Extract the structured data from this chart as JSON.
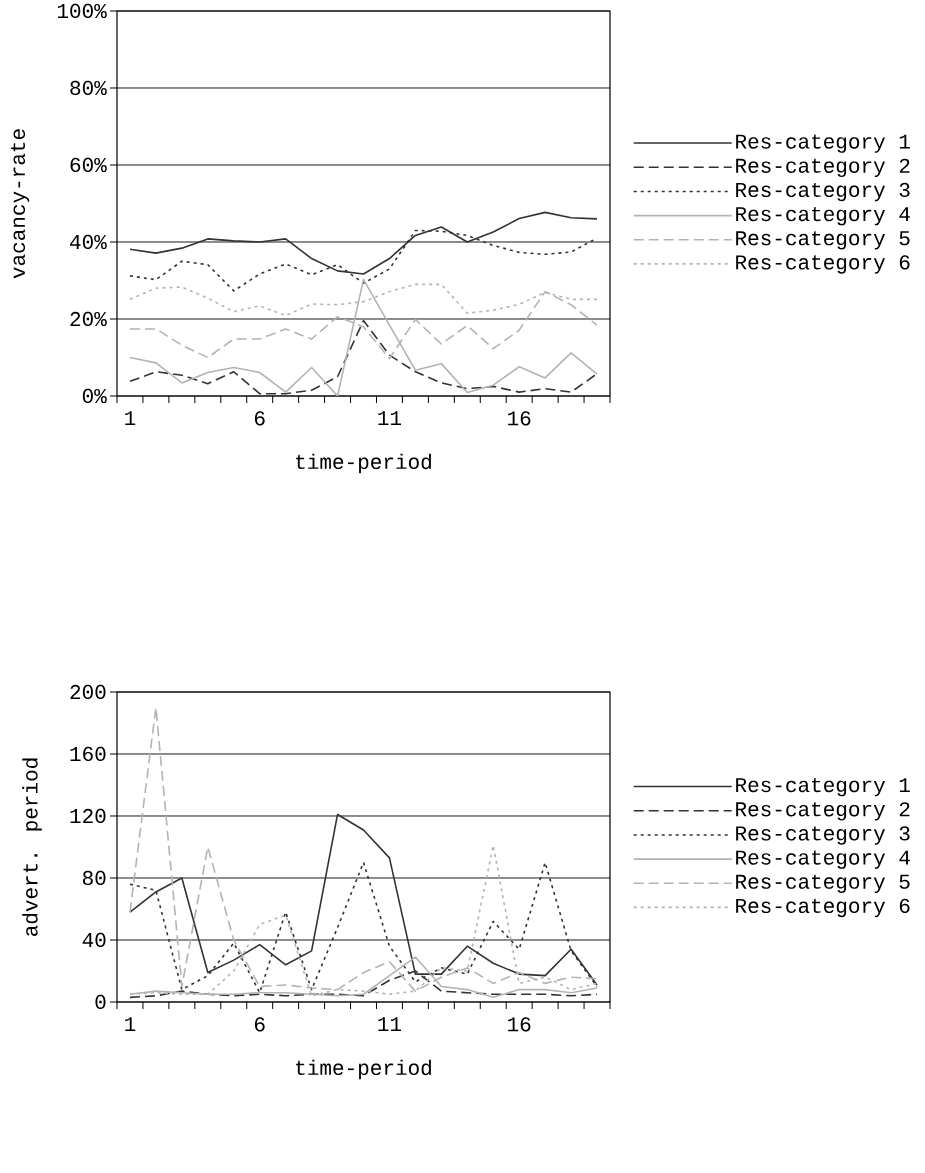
{
  "chart_data": [
    {
      "type": "line",
      "xlabel": "time-period",
      "ylabel": "vacancy-rate",
      "x": [
        1,
        2,
        3,
        4,
        5,
        6,
        7,
        8,
        9,
        10,
        11,
        12,
        13,
        14,
        15,
        16,
        17,
        18,
        19
      ],
      "xlim": [
        0.5,
        19.5
      ],
      "ylim": [
        0,
        100
      ],
      "xticks": [
        {
          "value": 0.5,
          "label": null
        },
        1,
        {
          "value": 1.5,
          "label": null
        },
        {
          "value": 2.5,
          "label": null
        },
        {
          "value": 3.5,
          "label": null
        },
        {
          "value": 4.5,
          "label": null
        },
        {
          "value": 5.5,
          "label": null
        },
        6,
        {
          "value": 6.5,
          "label": null
        },
        {
          "value": 7.5,
          "label": null
        },
        {
          "value": 8.5,
          "label": null
        },
        {
          "value": 9.5,
          "label": null
        },
        {
          "value": 10.5,
          "label": null
        },
        11,
        {
          "value": 11.5,
          "label": null
        },
        {
          "value": 12.5,
          "label": null
        },
        {
          "value": 13.5,
          "label": null
        },
        {
          "value": 14.5,
          "label": null
        },
        {
          "value": 15.5,
          "label": null
        },
        16,
        {
          "value": 16.5,
          "label": null
        },
        {
          "value": 17.5,
          "label": null
        },
        {
          "value": 18.5,
          "label": null
        },
        {
          "value": 19.5,
          "label": null
        }
      ],
      "yticks": [
        {
          "value": 0,
          "label": "0%"
        },
        {
          "value": 20,
          "label": "20%"
        },
        {
          "value": 40,
          "label": "40%"
        },
        {
          "value": 60,
          "label": "60%"
        },
        {
          "value": 80,
          "label": "80%"
        },
        {
          "value": 100,
          "label": "100%"
        }
      ],
      "grid": "y",
      "legend": "right",
      "marker": "none",
      "series": [
        {
          "name": "Res-category 1",
          "color": "#333333",
          "line_style": "solid",
          "values": [
            38.1,
            37.1,
            38.4,
            40.8,
            40.3,
            40,
            40.8,
            35.7,
            32.5,
            31.7,
            35.7,
            41.7,
            43.9,
            40,
            42.6,
            46.1,
            47.7,
            46.3,
            46.0
          ]
        },
        {
          "name": "Res-category 2",
          "color": "#333333",
          "line_style": "dashed",
          "values": [
            3.8,
            6.3,
            5.4,
            3.2,
            6.3,
            0.6,
            0.6,
            1.5,
            5,
            19.6,
            10.6,
            6.3,
            3.4,
            1.9,
            2.5,
            1,
            1.9,
            1,
            5.8
          ]
        },
        {
          "name": "Res-category 3",
          "color": "#333333",
          "line_style": "dotted",
          "values": [
            31.2,
            30.2,
            35,
            34.1,
            27.3,
            31.7,
            34.3,
            31.5,
            34.1,
            29.3,
            33,
            43,
            42.8,
            41.7,
            39.1,
            37.3,
            36.8,
            37.4,
            41
          ]
        },
        {
          "name": "Res-category 4",
          "color": "#b3b3b3",
          "line_style": "solid",
          "values": [
            10,
            8.6,
            3.4,
            6.1,
            7.4,
            6.1,
            1,
            7.4,
            0,
            30.3,
            18.4,
            6.7,
            8.4,
            0.9,
            2.8,
            7.6,
            4.7,
            11.2,
            5.7
          ]
        },
        {
          "name": "Res-category 5",
          "color": "#b3b3b3",
          "line_style": "dashed",
          "values": [
            17.4,
            17.4,
            13.2,
            10,
            14.8,
            14.8,
            17.4,
            14.8,
            20.6,
            18,
            9.7,
            19.9,
            13.5,
            18.3,
            12.3,
            17.1,
            27.1,
            23.7,
            18.4
          ]
        },
        {
          "name": "Res-category 6",
          "color": "#b3b3b3",
          "line_style": "dotted",
          "values": [
            25.1,
            28,
            28.3,
            25.4,
            21.9,
            23.4,
            20.9,
            23.9,
            23.7,
            24.5,
            27.1,
            29,
            29,
            21.5,
            22.3,
            23.8,
            26.9,
            25.1,
            25.1
          ]
        }
      ]
    },
    {
      "type": "line",
      "xlabel": "time-period",
      "ylabel": "advert. period",
      "x": [
        1,
        2,
        3,
        4,
        5,
        6,
        7,
        8,
        9,
        10,
        11,
        12,
        13,
        14,
        15,
        16,
        17,
        18,
        19
      ],
      "xlim": [
        0.5,
        19.5
      ],
      "ylim": [
        0,
        200
      ],
      "xticks": [
        {
          "value": 0.5,
          "label": null
        },
        1,
        {
          "value": 1.5,
          "label": null
        },
        {
          "value": 2.5,
          "label": null
        },
        {
          "value": 3.5,
          "label": null
        },
        {
          "value": 4.5,
          "label": null
        },
        {
          "value": 5.5,
          "label": null
        },
        6,
        {
          "value": 6.5,
          "label": null
        },
        {
          "value": 7.5,
          "label": null
        },
        {
          "value": 8.5,
          "label": null
        },
        {
          "value": 9.5,
          "label": null
        },
        {
          "value": 10.5,
          "label": null
        },
        11,
        {
          "value": 11.5,
          "label": null
        },
        {
          "value": 12.5,
          "label": null
        },
        {
          "value": 13.5,
          "label": null
        },
        {
          "value": 14.5,
          "label": null
        },
        {
          "value": 15.5,
          "label": null
        },
        16,
        {
          "value": 16.5,
          "label": null
        },
        {
          "value": 17.5,
          "label": null
        },
        {
          "value": 18.5,
          "label": null
        },
        {
          "value": 19.5,
          "label": null
        }
      ],
      "yticks": [
        0,
        40,
        80,
        120,
        160,
        200
      ],
      "grid": "y",
      "legend": "right",
      "marker": "none",
      "series": [
        {
          "name": "Res-category 1",
          "color": "#333333",
          "line_style": "solid",
          "values": [
            58,
            71,
            80,
            19,
            27,
            37,
            24,
            33,
            121,
            111,
            93,
            18,
            18,
            36,
            25,
            18,
            17,
            34,
            11
          ]
        },
        {
          "name": "Res-category 2",
          "color": "#333333",
          "line_style": "dashed",
          "values": [
            3,
            4,
            7,
            5,
            4,
            5,
            4,
            5,
            5,
            4,
            14,
            20,
            7,
            6,
            5,
            5,
            5,
            4,
            5
          ]
        },
        {
          "name": "Res-category 3",
          "color": "#333333",
          "line_style": "dotted",
          "values": [
            76,
            72,
            8,
            17,
            38,
            6,
            58,
            8,
            48,
            90,
            36,
            13,
            22,
            18,
            52,
            34,
            90,
            33,
            10
          ]
        },
        {
          "name": "Res-category 4",
          "color": "#b3b3b3",
          "line_style": "solid",
          "values": [
            5,
            7,
            6,
            5,
            5,
            6,
            6,
            5,
            4,
            5,
            17,
            29,
            10,
            8,
            3,
            8,
            8,
            6,
            9
          ]
        },
        {
          "name": "Res-category 5",
          "color": "#b3b3b3",
          "line_style": "dashed",
          "values": [
            58,
            190,
            10,
            100,
            40,
            10,
            11,
            9,
            8,
            19,
            26,
            7,
            16,
            22,
            12,
            19,
            12,
            16,
            15
          ]
        },
        {
          "name": "Res-category 6",
          "color": "#b3b3b3",
          "line_style": "dotted",
          "values": [
            5,
            6,
            5,
            5,
            20,
            50,
            56,
            4,
            8,
            7,
            5,
            7,
            22,
            20,
            101,
            12,
            16,
            8,
            12
          ]
        }
      ]
    }
  ]
}
